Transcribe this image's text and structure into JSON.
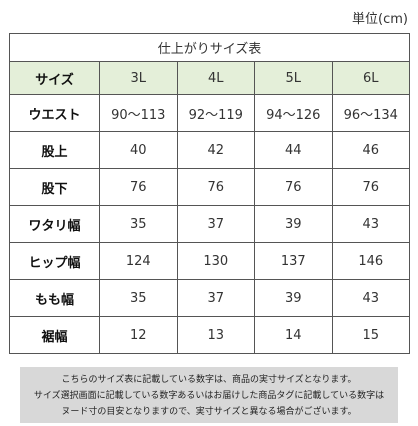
{
  "unit_label": "単位(cm)",
  "table": {
    "title": "仕上がりサイズ表",
    "header_label": "サイズ",
    "sizes": [
      "3L",
      "4L",
      "5L",
      "6L"
    ],
    "rows": [
      {
        "label": "ウエスト",
        "values": [
          "90～113",
          "92～119",
          "94～126",
          "96～134"
        ]
      },
      {
        "label": "股上",
        "values": [
          "40",
          "42",
          "44",
          "46"
        ]
      },
      {
        "label": "股下",
        "values": [
          "76",
          "76",
          "76",
          "76"
        ]
      },
      {
        "label": "ワタリ幅",
        "values": [
          "35",
          "37",
          "39",
          "43"
        ]
      },
      {
        "label": "ヒップ幅",
        "values": [
          "124",
          "130",
          "137",
          "146"
        ]
      },
      {
        "label": "もも幅",
        "values": [
          "35",
          "37",
          "39",
          "43"
        ]
      },
      {
        "label": "裾幅",
        "values": [
          "12",
          "13",
          "14",
          "15"
        ]
      }
    ]
  },
  "note": {
    "lines": [
      "こちらのサイズ表に記載している数字は、商品の実寸サイズとなります。",
      "サイズ選択画面に記載している数字あるいはお届けした商品タグに記載している数字は",
      "ヌード寸の目安となりますので、実寸サイズと異なる場合がございます。"
    ]
  },
  "colors": {
    "header_bg": "#e4efd9",
    "note_bg": "#d8d8d8",
    "border": "#555555"
  }
}
